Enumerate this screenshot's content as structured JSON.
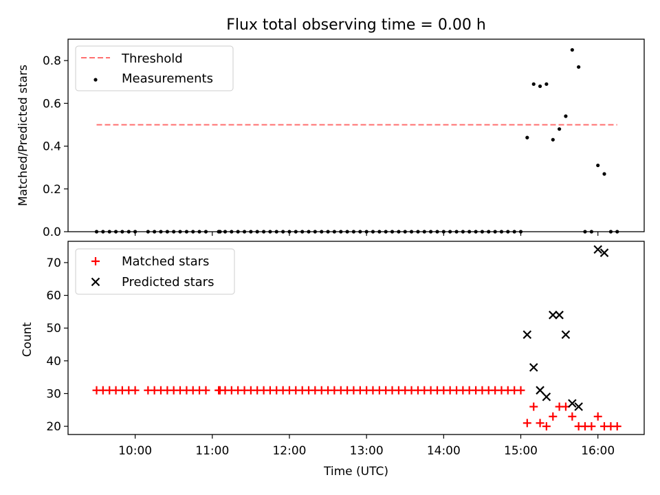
{
  "title": "Flux total observing time = 0.00 h",
  "colors": {
    "threshold": "#ff6e6e",
    "measurements": "#000000",
    "matched": "#ff0000",
    "predicted": "#000000"
  },
  "chart_data": [
    {
      "type": "scatter",
      "title": "Flux total observing time = 0.00 h",
      "ylabel": "Matched/Predicted stars",
      "xlabel": "",
      "ylim": [
        0,
        0.9
      ],
      "xlim": [
        9.13,
        16.6
      ],
      "yticks": [
        0.0,
        0.2,
        0.4,
        0.6,
        0.8
      ],
      "ytick_labels": [
        "0.0",
        "0.2",
        "0.4",
        "0.6",
        "0.8"
      ],
      "legend_position": "top-left",
      "series": [
        {
          "name": "Threshold",
          "type": "line",
          "style": "dashed",
          "x": [
            9.5,
            16.25
          ],
          "y": [
            0.5,
            0.5
          ]
        },
        {
          "name": "Measurements",
          "type": "scatter",
          "x": [
            9.5,
            9.583,
            9.667,
            9.75,
            9.833,
            9.917,
            10.0,
            10.167,
            10.25,
            10.333,
            10.417,
            10.5,
            10.583,
            10.667,
            10.75,
            10.833,
            10.917,
            11.083,
            11.1,
            11.167,
            11.25,
            11.333,
            11.417,
            11.5,
            11.583,
            11.667,
            11.75,
            11.833,
            11.917,
            12.0,
            12.083,
            12.167,
            12.25,
            12.333,
            12.417,
            12.5,
            12.583,
            12.667,
            12.75,
            12.833,
            12.917,
            13.0,
            13.083,
            13.167,
            13.25,
            13.333,
            13.417,
            13.5,
            13.583,
            13.667,
            13.75,
            13.833,
            13.917,
            14.0,
            14.083,
            14.167,
            14.25,
            14.333,
            14.417,
            14.5,
            14.583,
            14.667,
            14.75,
            14.833,
            14.917,
            15.0,
            15.083,
            15.167,
            15.25,
            15.333,
            15.417,
            15.5,
            15.583,
            15.667,
            15.75,
            15.833,
            15.917,
            16.0,
            16.083,
            16.167,
            16.25
          ],
          "y": [
            0,
            0,
            0,
            0,
            0,
            0,
            0,
            0,
            0,
            0,
            0,
            0,
            0,
            0,
            0,
            0,
            0,
            0,
            0,
            0,
            0,
            0,
            0,
            0,
            0,
            0,
            0,
            0,
            0,
            0,
            0,
            0,
            0,
            0,
            0,
            0,
            0,
            0,
            0,
            0,
            0,
            0,
            0,
            0,
            0,
            0,
            0,
            0,
            0,
            0,
            0,
            0,
            0,
            0,
            0,
            0,
            0,
            0,
            0,
            0,
            0,
            0,
            0,
            0,
            0,
            0,
            0.44,
            0.69,
            0.68,
            0.69,
            0.43,
            0.48,
            0.54,
            0.85,
            0.77,
            0,
            0,
            0.31,
            0.27,
            0,
            0
          ]
        }
      ]
    },
    {
      "type": "scatter",
      "title": "",
      "ylabel": "Count",
      "xlabel": "Time (UTC)",
      "ylim": [
        17.5,
        76.5
      ],
      "xlim": [
        9.13,
        16.6
      ],
      "yticks": [
        20,
        30,
        40,
        50,
        60,
        70
      ],
      "ytick_labels": [
        "20",
        "30",
        "40",
        "50",
        "60",
        "70"
      ],
      "xticks": [
        10,
        11,
        12,
        13,
        14,
        15,
        16
      ],
      "xtick_labels": [
        "10:00",
        "11:00",
        "12:00",
        "13:00",
        "14:00",
        "15:00",
        "16:00"
      ],
      "legend_position": "top-left",
      "series": [
        {
          "name": "Matched stars",
          "marker": "+",
          "x": [
            9.5,
            9.583,
            9.667,
            9.75,
            9.833,
            9.917,
            10.0,
            10.167,
            10.25,
            10.333,
            10.417,
            10.5,
            10.583,
            10.667,
            10.75,
            10.833,
            10.917,
            11.083,
            11.1,
            11.167,
            11.25,
            11.333,
            11.417,
            11.5,
            11.583,
            11.667,
            11.75,
            11.833,
            11.917,
            12.0,
            12.083,
            12.167,
            12.25,
            12.333,
            12.417,
            12.5,
            12.583,
            12.667,
            12.75,
            12.833,
            12.917,
            13.0,
            13.083,
            13.167,
            13.25,
            13.333,
            13.417,
            13.5,
            13.583,
            13.667,
            13.75,
            13.833,
            13.917,
            14.0,
            14.083,
            14.167,
            14.25,
            14.333,
            14.417,
            14.5,
            14.583,
            14.667,
            14.75,
            14.833,
            14.917,
            15.0,
            15.083,
            15.167,
            15.25,
            15.333,
            15.417,
            15.5,
            15.583,
            15.667,
            15.75,
            15.833,
            15.917,
            16.0,
            16.083,
            16.167,
            16.25
          ],
          "y": [
            31,
            31,
            31,
            31,
            31,
            31,
            31,
            31,
            31,
            31,
            31,
            31,
            31,
            31,
            31,
            31,
            31,
            31,
            31,
            31,
            31,
            31,
            31,
            31,
            31,
            31,
            31,
            31,
            31,
            31,
            31,
            31,
            31,
            31,
            31,
            31,
            31,
            31,
            31,
            31,
            31,
            31,
            31,
            31,
            31,
            31,
            31,
            31,
            31,
            31,
            31,
            31,
            31,
            31,
            31,
            31,
            31,
            31,
            31,
            31,
            31,
            31,
            31,
            31,
            31,
            31,
            21,
            26,
            21,
            20,
            23,
            26,
            26,
            23,
            20,
            20,
            20,
            23,
            20,
            20,
            20
          ]
        },
        {
          "name": "Predicted stars",
          "marker": "x",
          "x": [
            15.083,
            15.167,
            15.25,
            15.333,
            15.417,
            15.5,
            15.583,
            15.667,
            15.75,
            16.0,
            16.083
          ],
          "y": [
            48,
            38,
            31,
            29,
            54,
            54,
            48,
            27,
            26,
            74,
            73
          ]
        }
      ]
    }
  ]
}
